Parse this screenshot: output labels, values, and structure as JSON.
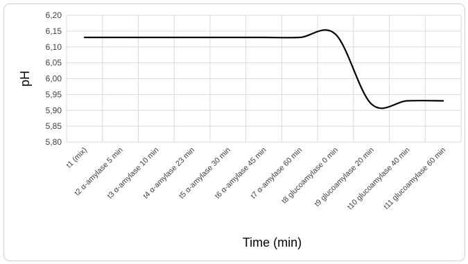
{
  "chart_data": {
    "type": "line",
    "xlabel": "Time (min)",
    "ylabel": "pH",
    "ylim": [
      5.8,
      6.2
    ],
    "yticks": [
      "5,80",
      "5,85",
      "5,90",
      "5,95",
      "6,00",
      "6,05",
      "6,10",
      "6,15",
      "6,20"
    ],
    "categories": [
      "t1 (mix)",
      "t2 α-amylase 5 min",
      "t3 α-amylase 10 min",
      "t4 α-amylase 23 min",
      "t5 α-amylase 30 min",
      "t6 α-amylase 45 min",
      "t7 α-amylase 60 min",
      "t8 glucoamylase 0 min",
      "t9 glucoamylase 20 min",
      "t10 glucoamylase 40 min",
      "t11 glucoamylase 60 min"
    ],
    "series": [
      {
        "values": [
          6.13,
          6.13,
          6.13,
          6.13,
          6.13,
          6.13,
          6.13,
          6.14,
          5.92,
          5.93,
          5.93
        ],
        "color": "#000000"
      }
    ],
    "grid": true,
    "legend": "none"
  }
}
